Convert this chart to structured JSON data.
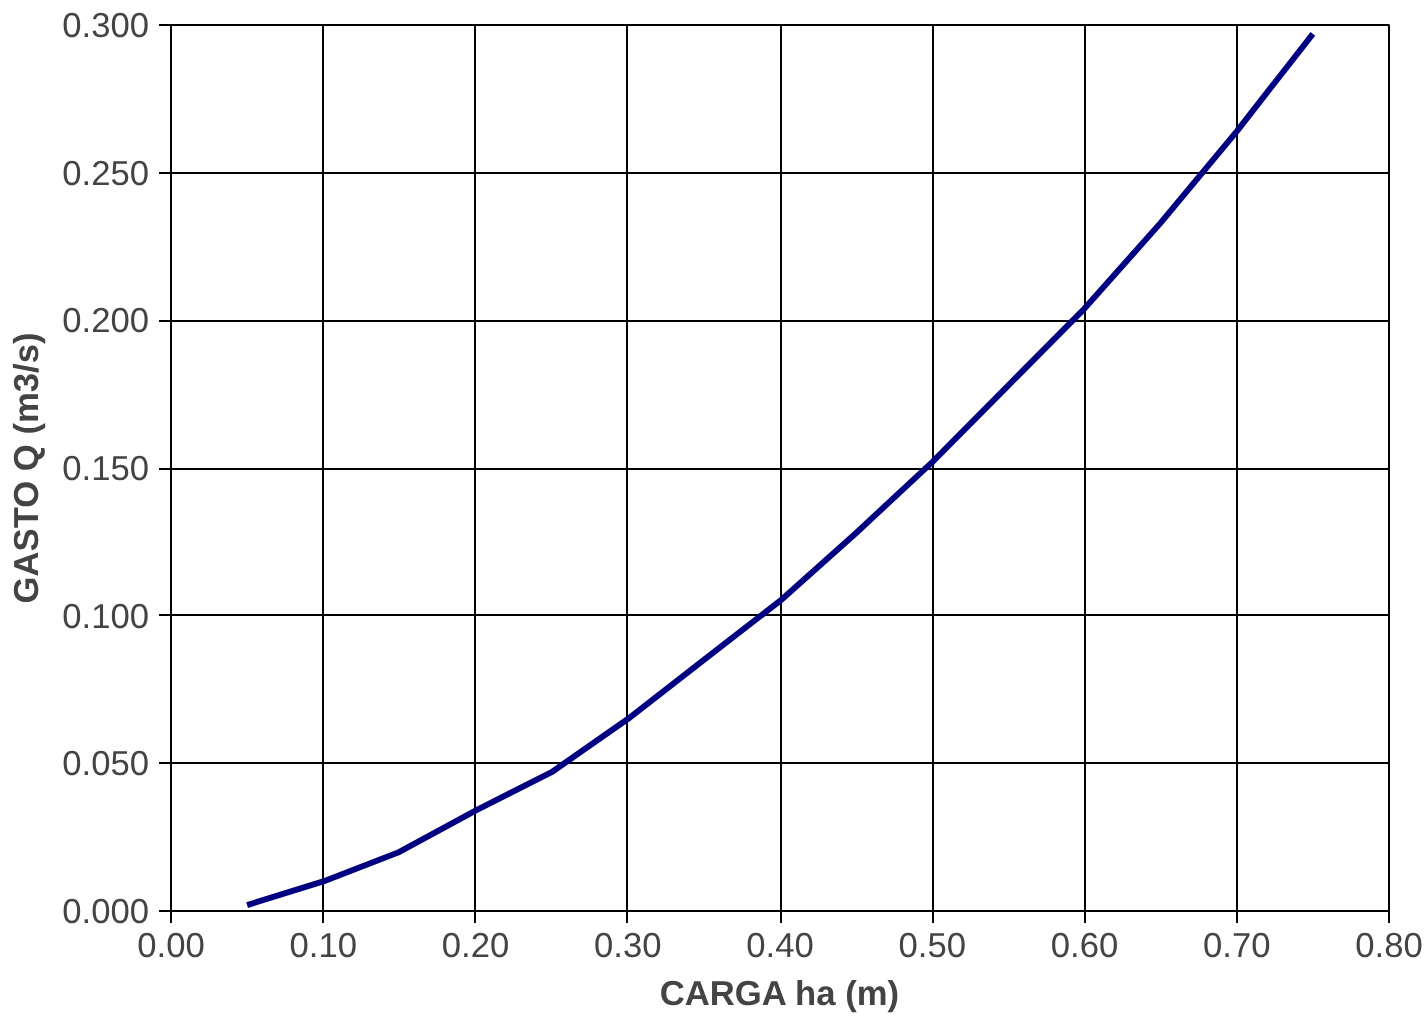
{
  "chart_data": {
    "type": "line",
    "xlabel": "CARGA ha (m)",
    "ylabel": "GASTO Q (m3/s)",
    "x": [
      0.05,
      0.1,
      0.15,
      0.2,
      0.25,
      0.3,
      0.35,
      0.4,
      0.45,
      0.5,
      0.55,
      0.6,
      0.65,
      0.7,
      0.75
    ],
    "series": [
      {
        "color": "#000080",
        "values": [
          0.002,
          0.01,
          0.02,
          0.034,
          0.047,
          0.065,
          0.085,
          0.105,
          0.128,
          0.152,
          0.178,
          0.204,
          0.233,
          0.264,
          0.297
        ]
      }
    ],
    "xlim": [
      0.0,
      0.8
    ],
    "ylim": [
      0.0,
      0.3
    ],
    "xticks": [
      {
        "value": 0.0,
        "label": "0.00"
      },
      {
        "value": 0.1,
        "label": "0.10"
      },
      {
        "value": 0.2,
        "label": "0.20"
      },
      {
        "value": 0.3,
        "label": "0.30"
      },
      {
        "value": 0.4,
        "label": "0.40"
      },
      {
        "value": 0.5,
        "label": "0.50"
      },
      {
        "value": 0.6,
        "label": "0.60"
      },
      {
        "value": 0.7,
        "label": "0.70"
      },
      {
        "value": 0.8,
        "label": "0.80"
      }
    ],
    "yticks": [
      {
        "value": 0.0,
        "label": "0.000"
      },
      {
        "value": 0.05,
        "label": "0.050"
      },
      {
        "value": 0.1,
        "label": "0.100"
      },
      {
        "value": 0.15,
        "label": "0.150"
      },
      {
        "value": 0.2,
        "label": "0.200"
      },
      {
        "value": 0.25,
        "label": "0.250"
      },
      {
        "value": 0.3,
        "label": "0.300"
      }
    ],
    "grid": true,
    "marker": "none",
    "line_style": "solid"
  }
}
